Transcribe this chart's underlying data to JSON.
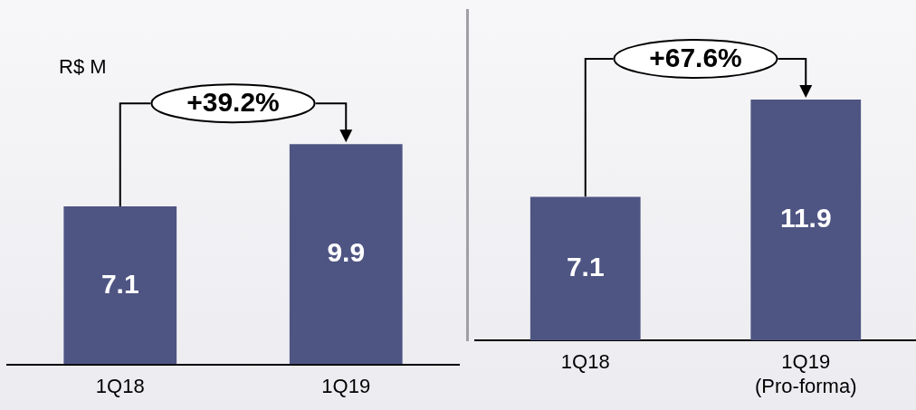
{
  "chart_data": [
    {
      "type": "bar",
      "ylabel": "R$ M",
      "categories": [
        "1Q18",
        "1Q19"
      ],
      "values": [
        7.1,
        9.9
      ],
      "color": "#4e5583",
      "data_labels": true,
      "annotations": [
        "+39.2%"
      ],
      "tick_labels": "x",
      "grid": false,
      "legend": false
    },
    {
      "type": "bar",
      "categories": [
        "1Q18",
        "1Q19 (Pro-forma)"
      ],
      "values": [
        7.1,
        11.9
      ],
      "color": "#4e5583",
      "data_labels": true,
      "annotations": [
        "+67.6%"
      ],
      "tick_labels": "x",
      "grid": false,
      "legend": false
    }
  ]
}
